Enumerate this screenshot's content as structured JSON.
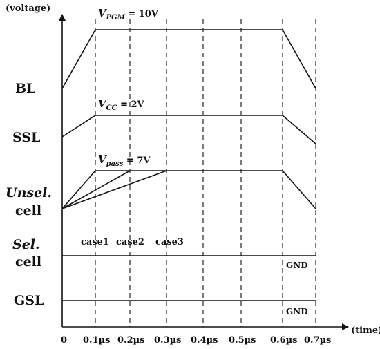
{
  "axes": {
    "y_label": "(voltage)",
    "x_label": "(time)",
    "ticks": [
      "0",
      "0.1µs",
      "0.2µs",
      "0.3µs",
      "0.4µs",
      "0.5µs",
      "0.6µs",
      "0.7µs"
    ]
  },
  "signals": {
    "bl": {
      "label": "BL",
      "level_symbol": "V",
      "level_subscript": "PGM",
      "level_value": " = 10V"
    },
    "ssl": {
      "label": "SSL",
      "level_symbol": "V",
      "level_subscript": "CC",
      "level_value": " = 2V"
    },
    "unsel": {
      "label_line1": "Unsel.",
      "label_line2": "cell",
      "level_symbol": "V",
      "level_subscript": "pass",
      "level_value": " = 7V"
    },
    "sel": {
      "label_line1": "Sel.",
      "label_line2": "cell",
      "level_text": "GND"
    },
    "gsl": {
      "label": "GSL",
      "level_text": "GND"
    }
  },
  "cases": [
    "case1",
    "case2",
    "case3"
  ]
}
